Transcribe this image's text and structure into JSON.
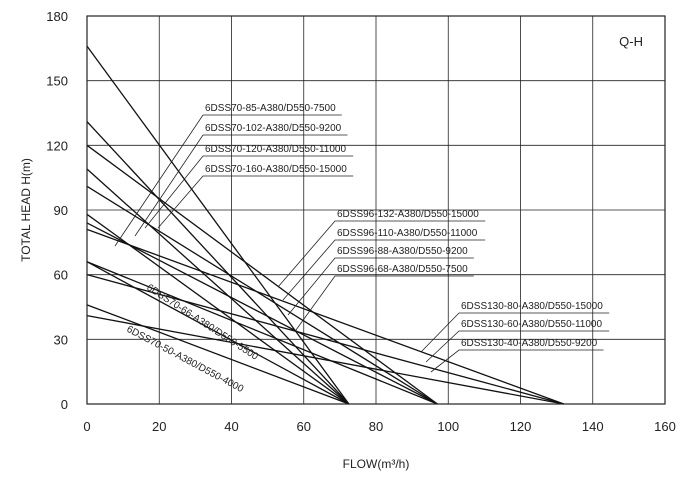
{
  "chart_data": {
    "type": "line",
    "corner_label": "Q-H",
    "xlabel": "FLOW(m³/h)",
    "ylabel": "TOTAL HEAD H(m)",
    "xlim": [
      0,
      160
    ],
    "ylim": [
      0,
      180
    ],
    "xticks": [
      0,
      20,
      40,
      60,
      80,
      100,
      120,
      140,
      160
    ],
    "yticks": [
      0,
      30,
      60,
      90,
      120,
      150,
      180
    ],
    "grid": true,
    "series": [
      {
        "name": "6DSS70-50-A380/D550-4000",
        "x": [
          0,
          72.5
        ],
        "y": [
          46,
          0
        ]
      },
      {
        "name": "6DSS70-66-A380/D550-5500",
        "x": [
          0,
          72.5
        ],
        "y": [
          66,
          0
        ]
      },
      {
        "name": "6DSS70-85-A380/D550-7500",
        "x": [
          0,
          72.5
        ],
        "y": [
          88,
          0
        ]
      },
      {
        "name": "6DSS70-102-A380/D550-9200",
        "x": [
          0,
          72.5
        ],
        "y": [
          109,
          0
        ]
      },
      {
        "name": "6DSS70-120-A380/D550-11000",
        "x": [
          0,
          72.5
        ],
        "y": [
          131,
          0
        ]
      },
      {
        "name": "6DSS70-160-A380/D550-15000",
        "x": [
          0,
          72.5
        ],
        "y": [
          166,
          0
        ]
      },
      {
        "name": "6DSS96-68-A380/D550-7500",
        "x": [
          0,
          97
        ],
        "y": [
          66,
          0
        ]
      },
      {
        "name": "6DSS96-88-A380/D550-9200",
        "x": [
          0,
          97
        ],
        "y": [
          84,
          0
        ]
      },
      {
        "name": "6DSS96-110-A380/D550-11000",
        "x": [
          0,
          97
        ],
        "y": [
          101,
          0
        ]
      },
      {
        "name": "6DSS96-132-A380/D550-15000",
        "x": [
          0,
          97
        ],
        "y": [
          120,
          0
        ]
      },
      {
        "name": "6DSS130-40-A380/D550-9200",
        "x": [
          0,
          132
        ],
        "y": [
          41,
          0
        ]
      },
      {
        "name": "6DSS130-60-A380/D550-11000",
        "x": [
          0,
          132
        ],
        "y": [
          60,
          0
        ]
      },
      {
        "name": "6DSS130-80-A380/D550-15000",
        "x": [
          0,
          132
        ],
        "y": [
          81,
          0
        ]
      }
    ],
    "annotations": [
      {
        "text": "6DSS70-85-A380/D550-7500",
        "series": 2,
        "at": [
          70,
          131
        ],
        "rotate": 0
      },
      {
        "text": "6DSS70-102-A380/D550-9200",
        "series": 3,
        "at": [
          70,
          122
        ],
        "rotate": 0
      },
      {
        "text": "6DSS70-120-A380/D550-11000",
        "series": 4,
        "at": [
          70,
          113
        ],
        "rotate": 0
      },
      {
        "text": "6DSS70-160-A380/D550-15000",
        "series": 5,
        "at": [
          70,
          104
        ],
        "rotate": 0
      },
      {
        "text": "6DSS96-132-A380/D550-15000",
        "series": 9,
        "at": [
          138,
          86
        ],
        "rotate": 0
      },
      {
        "text": "6DSS96-110-A380/D550-11000",
        "series": 8,
        "at": [
          138,
          77
        ],
        "rotate": 0
      },
      {
        "text": "6DSS96-88-A380/D550-9200",
        "series": 7,
        "at": [
          138,
          68
        ],
        "rotate": 0
      },
      {
        "text": "6DSS96-68-A380/D550-7500",
        "series": 6,
        "at": [
          138,
          59
        ],
        "rotate": 0
      },
      {
        "text": "6DSS130-80-A380/D550-15000",
        "series": 12,
        "at": [
          207,
          44
        ],
        "rotate": 0
      },
      {
        "text": "6DSS130-60-A380/D550-11000",
        "series": 11,
        "at": [
          207,
          35
        ],
        "rotate": 0
      },
      {
        "text": "6DSS130-40-A380/D550-9200",
        "series": 10,
        "at": [
          207,
          26
        ],
        "rotate": 0
      },
      {
        "text": "6DSS70-66-A380/D550-5500",
        "series": 1,
        "at": [
          17,
          54
        ],
        "rotate": 33
      },
      {
        "text": "6DSS70-50-A380/D550-4000",
        "series": 0,
        "at": [
          11,
          39
        ],
        "rotate": 28
      }
    ]
  }
}
